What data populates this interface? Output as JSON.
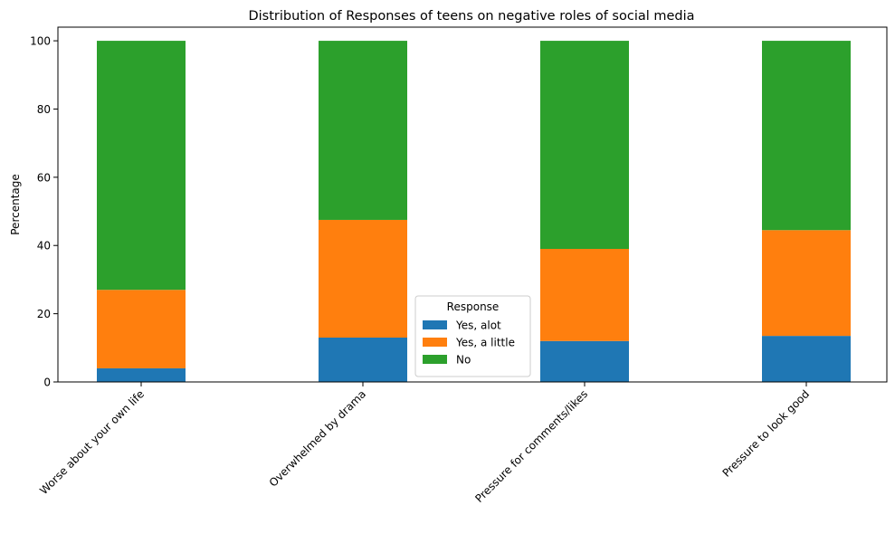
{
  "chart_data": {
    "type": "bar",
    "stacked": true,
    "title": "Distribution of Responses of teens on negative roles of social media",
    "xlabel": "",
    "ylabel": "Percentage",
    "ylim": [
      0,
      104
    ],
    "yticks": [
      0,
      20,
      40,
      60,
      80,
      100
    ],
    "categories": [
      "Worse about your own life",
      "Overwhelmed by drama",
      "Pressure for comments/likes",
      "Pressure to look good"
    ],
    "series": [
      {
        "name": "Yes, alot",
        "color": "#1f77b4",
        "values": [
          4,
          13,
          12,
          13.5
        ]
      },
      {
        "name": "Yes, a little",
        "color": "#ff7f0e",
        "values": [
          23,
          34.5,
          27,
          31
        ]
      },
      {
        "name": "No",
        "color": "#2ca02c",
        "values": [
          73,
          52.5,
          61,
          55.5
        ]
      }
    ],
    "legend": {
      "title": "Response",
      "position": "lower-center"
    },
    "grid": false
  }
}
